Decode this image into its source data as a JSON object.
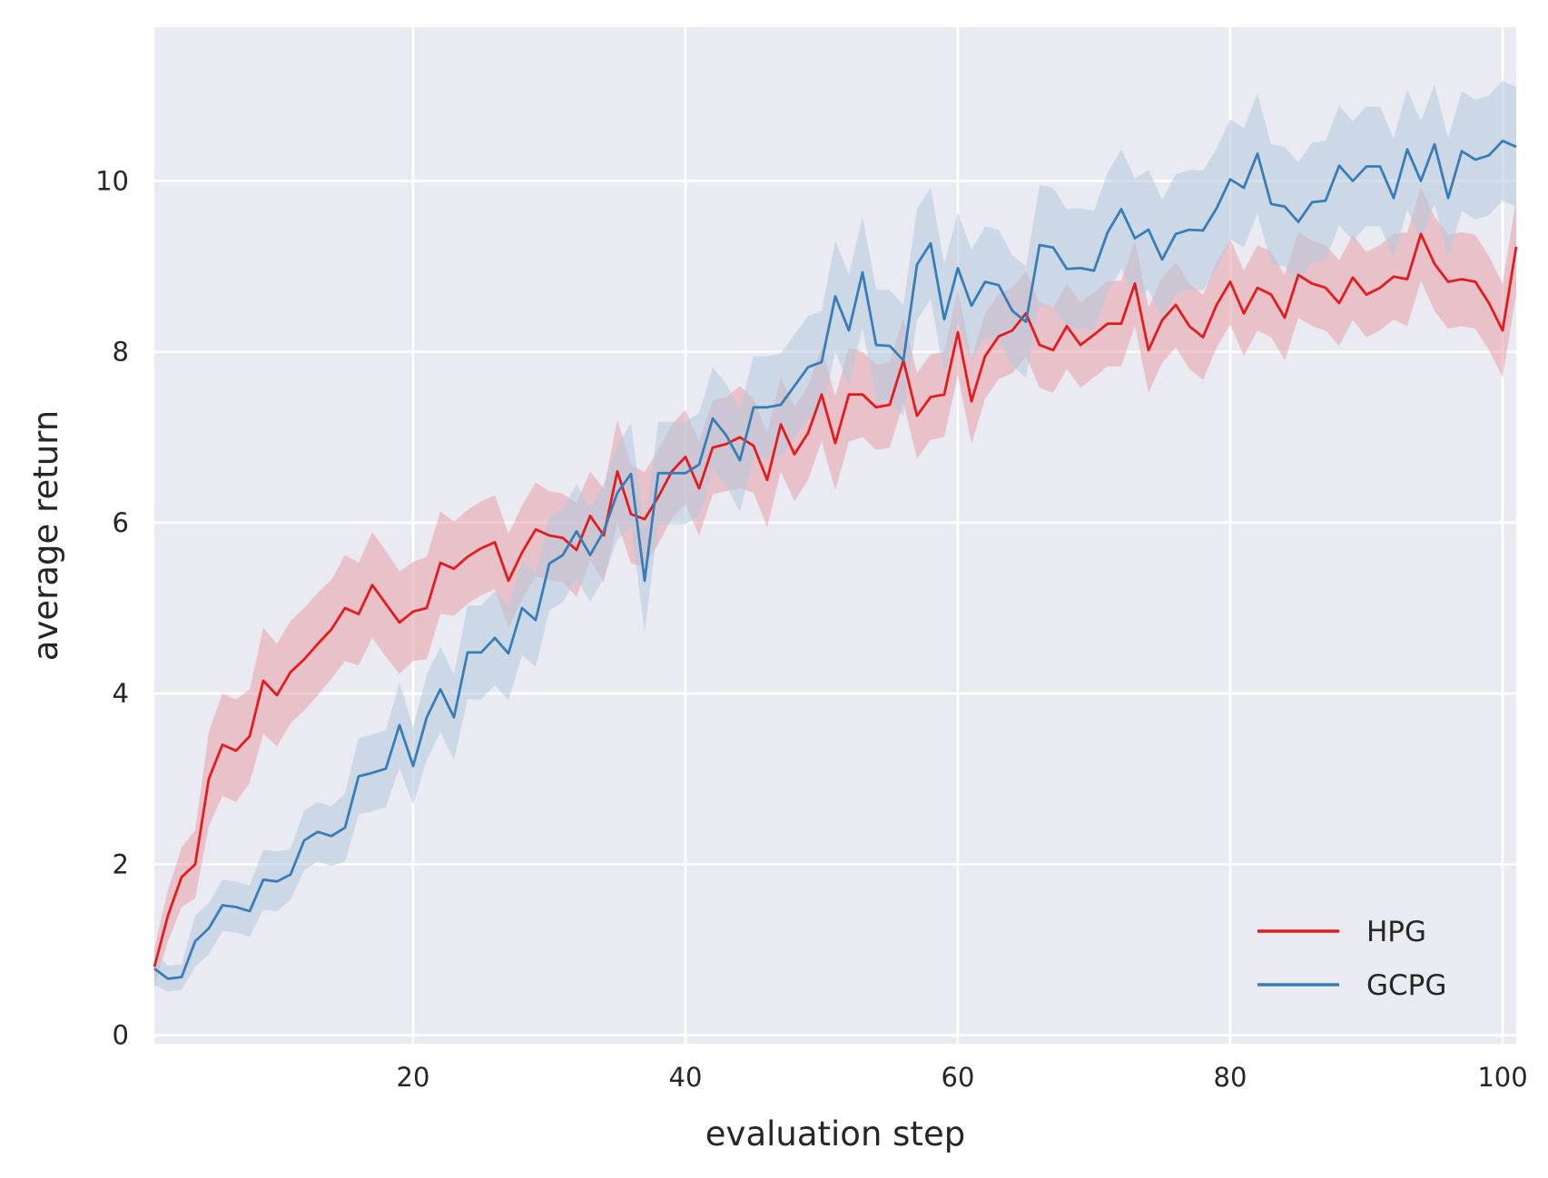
{
  "chart_data": {
    "type": "line",
    "title": "",
    "xlabel": "evaluation step",
    "ylabel": "average return",
    "xlim": [
      1,
      101
    ],
    "ylim": [
      -0.1,
      11.8
    ],
    "xticks": [
      20,
      40,
      60,
      80,
      100
    ],
    "yticks": [
      0,
      2,
      4,
      6,
      8,
      10
    ],
    "grid": true,
    "legend_position": "bottom-right",
    "colors": {
      "plot_bg": "#eaeaf2",
      "grid": "#ffffff"
    },
    "x": [
      1,
      2,
      3,
      4,
      5,
      6,
      7,
      8,
      9,
      10,
      11,
      12,
      13,
      14,
      15,
      16,
      17,
      18,
      19,
      20,
      21,
      22,
      23,
      24,
      25,
      26,
      27,
      28,
      29,
      30,
      31,
      32,
      33,
      34,
      35,
      36,
      37,
      38,
      39,
      40,
      41,
      42,
      43,
      44,
      45,
      46,
      47,
      48,
      49,
      50,
      51,
      52,
      53,
      54,
      55,
      56,
      57,
      58,
      59,
      60,
      61,
      62,
      63,
      64,
      65,
      66,
      67,
      68,
      69,
      70,
      71,
      72,
      73,
      74,
      75,
      76,
      77,
      78,
      79,
      80,
      81,
      82,
      83,
      84,
      85,
      86,
      87,
      88,
      89,
      90,
      91,
      92,
      93,
      94,
      95,
      96,
      97,
      98,
      99,
      100,
      101
    ],
    "series": [
      {
        "name": "HPG",
        "color": "#e41a1c",
        "band_color": "#e8a0a8",
        "values": [
          0.8,
          1.4,
          1.85,
          2.0,
          3.0,
          3.4,
          3.33,
          3.5,
          4.15,
          3.98,
          4.25,
          4.4,
          4.58,
          4.75,
          5.0,
          4.93,
          5.27,
          5.05,
          4.83,
          4.96,
          5.0,
          5.53,
          5.46,
          5.6,
          5.7,
          5.77,
          5.32,
          5.65,
          5.92,
          5.85,
          5.82,
          5.68,
          6.08,
          5.85,
          6.6,
          6.1,
          6.04,
          6.3,
          6.6,
          6.77,
          6.4,
          6.88,
          6.92,
          7.0,
          6.9,
          6.5,
          7.15,
          6.8,
          7.05,
          7.5,
          6.93,
          7.5,
          7.5,
          7.35,
          7.38,
          7.9,
          7.25,
          7.47,
          7.5,
          8.23,
          7.42,
          7.95,
          8.18,
          8.25,
          8.45,
          8.08,
          8.02,
          8.3,
          8.08,
          8.2,
          8.33,
          8.33,
          8.8,
          8.02,
          8.37,
          8.55,
          8.3,
          8.17,
          8.55,
          8.82,
          8.45,
          8.75,
          8.67,
          8.4,
          8.9,
          8.8,
          8.75,
          8.57,
          8.87,
          8.67,
          8.75,
          8.88,
          8.85,
          9.38,
          9.03,
          8.82,
          8.85,
          8.82,
          8.57,
          8.25,
          9.23
        ],
        "band_half_width": [
          0.22,
          0.3,
          0.35,
          0.4,
          0.55,
          0.6,
          0.6,
          0.55,
          0.62,
          0.6,
          0.6,
          0.6,
          0.6,
          0.58,
          0.62,
          0.6,
          0.62,
          0.62,
          0.6,
          0.58,
          0.6,
          0.6,
          0.55,
          0.55,
          0.55,
          0.55,
          0.55,
          0.55,
          0.55,
          0.52,
          0.52,
          0.55,
          0.52,
          0.55,
          0.6,
          0.58,
          0.55,
          0.55,
          0.55,
          0.55,
          0.55,
          0.55,
          0.55,
          0.6,
          0.55,
          0.55,
          0.55,
          0.55,
          0.55,
          0.55,
          0.55,
          0.55,
          0.5,
          0.5,
          0.5,
          0.5,
          0.5,
          0.5,
          0.5,
          0.5,
          0.5,
          0.5,
          0.5,
          0.5,
          0.5,
          0.5,
          0.5,
          0.5,
          0.5,
          0.5,
          0.5,
          0.5,
          0.5,
          0.5,
          0.5,
          0.5,
          0.5,
          0.5,
          0.5,
          0.5,
          0.5,
          0.5,
          0.5,
          0.5,
          0.5,
          0.5,
          0.5,
          0.5,
          0.5,
          0.5,
          0.5,
          0.5,
          0.55,
          0.55,
          0.55,
          0.55,
          0.55,
          0.55,
          0.55,
          0.55,
          0.55
        ]
      },
      {
        "name": "GCPG",
        "color": "#377eb8",
        "band_color": "#b4c8dd",
        "values": [
          0.78,
          0.66,
          0.68,
          1.1,
          1.25,
          1.52,
          1.5,
          1.45,
          1.82,
          1.8,
          1.88,
          2.28,
          2.38,
          2.33,
          2.43,
          3.03,
          3.07,
          3.12,
          3.63,
          3.15,
          3.72,
          4.05,
          3.72,
          4.48,
          4.48,
          4.65,
          4.47,
          5.0,
          4.86,
          5.52,
          5.62,
          5.9,
          5.62,
          5.9,
          6.35,
          6.57,
          5.32,
          6.58,
          6.58,
          6.58,
          6.68,
          7.22,
          7.02,
          6.73,
          7.35,
          7.35,
          7.38,
          7.6,
          7.82,
          7.88,
          8.65,
          8.25,
          8.93,
          8.08,
          8.07,
          7.9,
          9.02,
          9.27,
          8.38,
          8.98,
          8.54,
          8.82,
          8.78,
          8.48,
          8.35,
          9.25,
          9.22,
          8.97,
          8.98,
          8.95,
          9.4,
          9.67,
          9.33,
          9.43,
          9.08,
          9.38,
          9.43,
          9.42,
          9.68,
          10.02,
          9.92,
          10.32,
          9.73,
          9.7,
          9.52,
          9.75,
          9.77,
          10.18,
          10.0,
          10.17,
          10.17,
          9.8,
          10.37,
          10.0,
          10.43,
          9.8,
          10.35,
          10.25,
          10.3,
          10.47,
          10.4
        ],
        "band_half_width": [
          0.2,
          0.15,
          0.15,
          0.3,
          0.3,
          0.3,
          0.3,
          0.3,
          0.35,
          0.35,
          0.3,
          0.35,
          0.35,
          0.35,
          0.4,
          0.45,
          0.45,
          0.45,
          0.5,
          0.45,
          0.5,
          0.5,
          0.5,
          0.55,
          0.55,
          0.55,
          0.55,
          0.55,
          0.55,
          0.55,
          0.55,
          0.55,
          0.55,
          0.55,
          0.55,
          0.6,
          0.6,
          0.6,
          0.6,
          0.6,
          0.6,
          0.6,
          0.6,
          0.6,
          0.6,
          0.6,
          0.6,
          0.6,
          0.6,
          0.6,
          0.65,
          0.65,
          0.65,
          0.65,
          0.65,
          0.65,
          0.65,
          0.65,
          0.65,
          0.65,
          0.65,
          0.65,
          0.65,
          0.65,
          0.65,
          0.7,
          0.7,
          0.7,
          0.7,
          0.7,
          0.7,
          0.7,
          0.7,
          0.7,
          0.7,
          0.7,
          0.7,
          0.7,
          0.7,
          0.7,
          0.7,
          0.7,
          0.7,
          0.7,
          0.7,
          0.7,
          0.7,
          0.7,
          0.7,
          0.7,
          0.7,
          0.7,
          0.7,
          0.7,
          0.7,
          0.7,
          0.7,
          0.7,
          0.7,
          0.7,
          0.7
        ]
      }
    ]
  }
}
